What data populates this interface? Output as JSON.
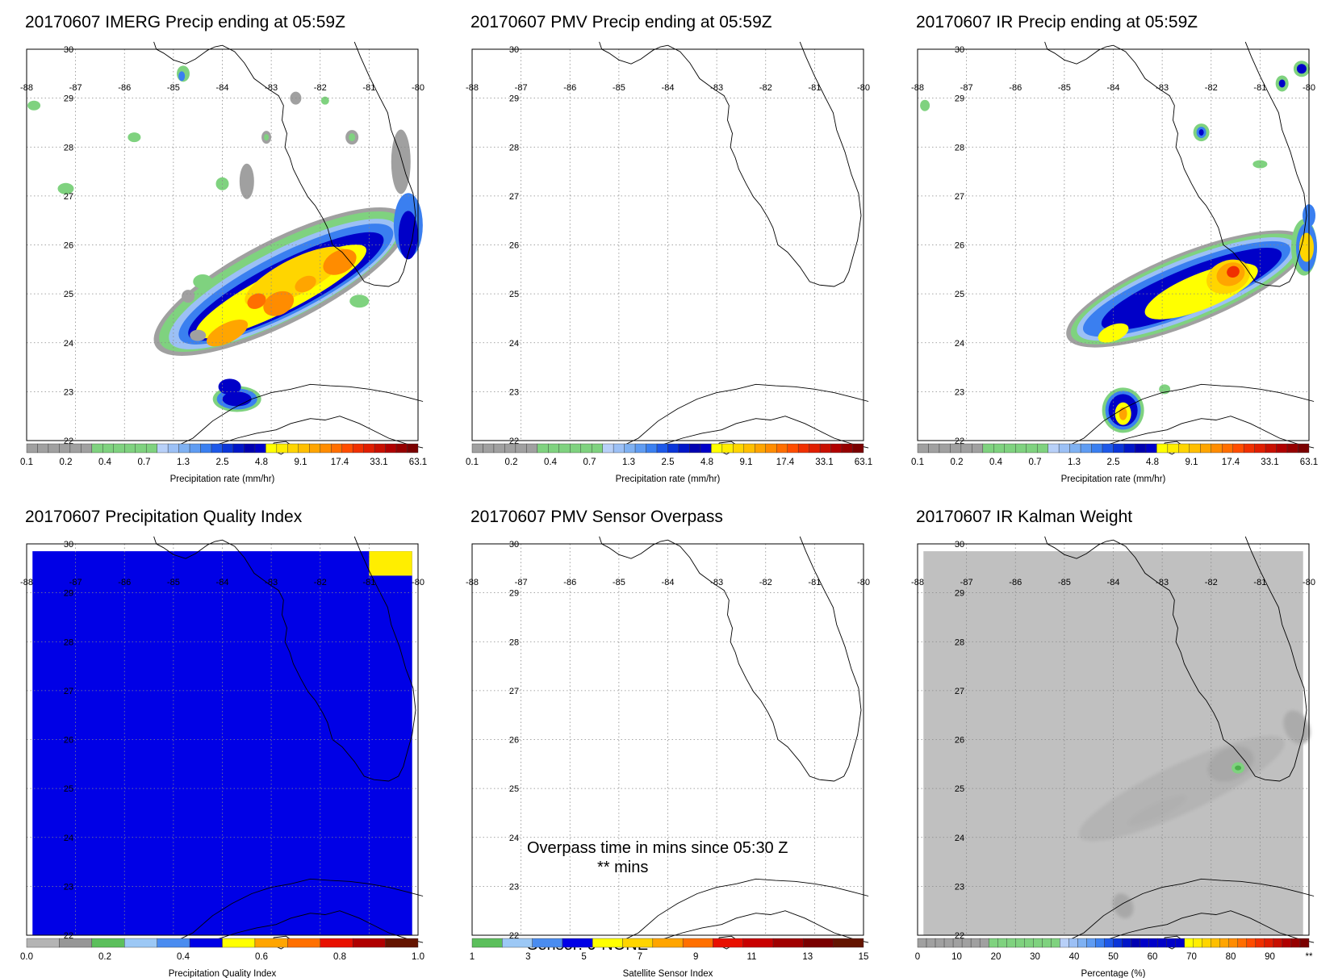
{
  "panels": [
    {
      "title": "20170607 IMERG Precip ending at 05:59Z",
      "colorbar": {
        "label": "Precipitation rate (mm/hr)",
        "ticks": [
          "0.1",
          "0.2",
          "0.4",
          "0.7",
          "1.3",
          "2.5",
          "4.8",
          "9.1",
          "17.4",
          "33.1",
          "63.1"
        ],
        "colors": [
          "#a0a0a0",
          "#a0a0a0",
          "#a0a0a0",
          "#a0a0a0",
          "#a0a0a0",
          "#a0a0a0",
          "#7fd27f",
          "#7fd27f",
          "#7fd27f",
          "#7fd27f",
          "#7fd27f",
          "#7fd27f",
          "#b8d0f8",
          "#9cc0f5",
          "#7fb1f2",
          "#5f9cf2",
          "#3a7ff0",
          "#1d58e8",
          "#0a35d8",
          "#0016c8",
          "#0000b0",
          "#0000c8",
          "#ffff00",
          "#ffee00",
          "#ffd500",
          "#ffbf00",
          "#ffa500",
          "#ff8c00",
          "#ff6e00",
          "#ff4d00",
          "#f03000",
          "#e01e00",
          "#c80f00",
          "#b00000",
          "#960000",
          "#7a0000"
        ]
      },
      "layer": "precip-imerg"
    },
    {
      "title": "20170607 PMV Precip ending at 05:59Z",
      "colorbar": {
        "label": "Precipitation rate (mm/hr)",
        "ticks": [
          "0.1",
          "0.2",
          "0.4",
          "0.7",
          "1.3",
          "2.5",
          "4.8",
          "9.1",
          "17.4",
          "33.1",
          "63.1"
        ],
        "colors": [
          "#a0a0a0",
          "#a0a0a0",
          "#a0a0a0",
          "#a0a0a0",
          "#a0a0a0",
          "#a0a0a0",
          "#7fd27f",
          "#7fd27f",
          "#7fd27f",
          "#7fd27f",
          "#7fd27f",
          "#7fd27f",
          "#b8d0f8",
          "#9cc0f5",
          "#7fb1f2",
          "#5f9cf2",
          "#3a7ff0",
          "#1d58e8",
          "#0a35d8",
          "#0016c8",
          "#0000b0",
          "#0000c8",
          "#ffff00",
          "#ffee00",
          "#ffd500",
          "#ffbf00",
          "#ffa500",
          "#ff8c00",
          "#ff6e00",
          "#ff4d00",
          "#f03000",
          "#e01e00",
          "#c80f00",
          "#b00000",
          "#960000",
          "#7a0000"
        ]
      },
      "layer": "none"
    },
    {
      "title": "20170607 IR Precip ending at 05:59Z",
      "colorbar": {
        "label": "Precipitation rate (mm/hr)",
        "ticks": [
          "0.1",
          "0.2",
          "0.4",
          "0.7",
          "1.3",
          "2.5",
          "4.8",
          "9.1",
          "17.4",
          "33.1",
          "63.1"
        ],
        "colors": [
          "#a0a0a0",
          "#a0a0a0",
          "#a0a0a0",
          "#a0a0a0",
          "#a0a0a0",
          "#a0a0a0",
          "#7fd27f",
          "#7fd27f",
          "#7fd27f",
          "#7fd27f",
          "#7fd27f",
          "#7fd27f",
          "#b8d0f8",
          "#9cc0f5",
          "#7fb1f2",
          "#5f9cf2",
          "#3a7ff0",
          "#1d58e8",
          "#0a35d8",
          "#0016c8",
          "#0000b0",
          "#0000c8",
          "#ffff00",
          "#ffee00",
          "#ffd500",
          "#ffbf00",
          "#ffa500",
          "#ff8c00",
          "#ff6e00",
          "#ff4d00",
          "#f03000",
          "#e01e00",
          "#c80f00",
          "#b00000",
          "#960000",
          "#7a0000"
        ]
      },
      "layer": "precip-ir"
    },
    {
      "title": "20170607 Precipitation Quality Index",
      "colorbar": {
        "label": "Precipitation Quality Index",
        "ticks": [
          "0.0",
          "0.2",
          "0.4",
          "0.6",
          "0.8",
          "1.0"
        ],
        "colors": [
          "#b4b4b4",
          "#969696",
          "#5cbf5c",
          "#9cc8f5",
          "#4a8cf0",
          "#0000e6",
          "#ffff00",
          "#ffa500",
          "#ff7000",
          "#e81000",
          "#b00000",
          "#641400"
        ]
      },
      "layer": "quality"
    },
    {
      "title": "20170607 PMV Sensor Overpass",
      "colorbar": {
        "label": "Satellite Sensor Index",
        "ticks": [
          "1",
          "3",
          "5",
          "7",
          "9",
          "11",
          "13",
          "15"
        ],
        "colors": [
          "#5cbf5c",
          "#9cc8f5",
          "#4a8cf0",
          "#0000e6",
          "#ffff00",
          "#ffd500",
          "#ffa500",
          "#ff7000",
          "#e81000",
          "#c80000",
          "#a00000",
          "#7a0000",
          "#641400"
        ]
      },
      "layer": "none",
      "annotations": [
        "Overpass time in mins since 05:30 Z",
        "** mins",
        "Sensor:   0-NONE"
      ]
    },
    {
      "title": "20170607 IR Kalman Weight",
      "colorbar": {
        "label": "Percentage (%)",
        "ticks": [
          "0",
          "10",
          "20",
          "30",
          "40",
          "50",
          "60",
          "70",
          "80",
          "90",
          "**"
        ],
        "colors": [
          "#a0a0a0",
          "#a0a0a0",
          "#a0a0a0",
          "#a0a0a0",
          "#a0a0a0",
          "#a0a0a0",
          "#a0a0a0",
          "#a0a0a0",
          "#7fd27f",
          "#7fd27f",
          "#7fd27f",
          "#7fd27f",
          "#7fd27f",
          "#7fd27f",
          "#7fd27f",
          "#7fd27f",
          "#b8d0f8",
          "#9cc0f5",
          "#7fb1f2",
          "#5f9cf2",
          "#3a7ff0",
          "#1d58e8",
          "#0a35d8",
          "#0016c8",
          "#0000b0",
          "#0000c8",
          "#0000c8",
          "#0000c8",
          "#0000c8",
          "#0000c8",
          "#ffff00",
          "#ffee00",
          "#ffd500",
          "#ffbf00",
          "#ffa500",
          "#ff8c00",
          "#ff6e00",
          "#ff4d00",
          "#f03000",
          "#e01e00",
          "#c80f00",
          "#b00000",
          "#960000",
          "#7a0000"
        ]
      },
      "layer": "kalman"
    }
  ],
  "map": {
    "lon_labels": [
      "-88",
      "-87",
      "-86",
      "-85",
      "-84",
      "-83",
      "-82",
      "-81",
      "-80"
    ],
    "lat_labels": [
      "30",
      "29",
      "28",
      "27",
      "26",
      "25",
      "24",
      "23",
      "22"
    ],
    "lon_range": [
      -88,
      -80
    ],
    "lat_range": [
      22,
      30
    ]
  }
}
